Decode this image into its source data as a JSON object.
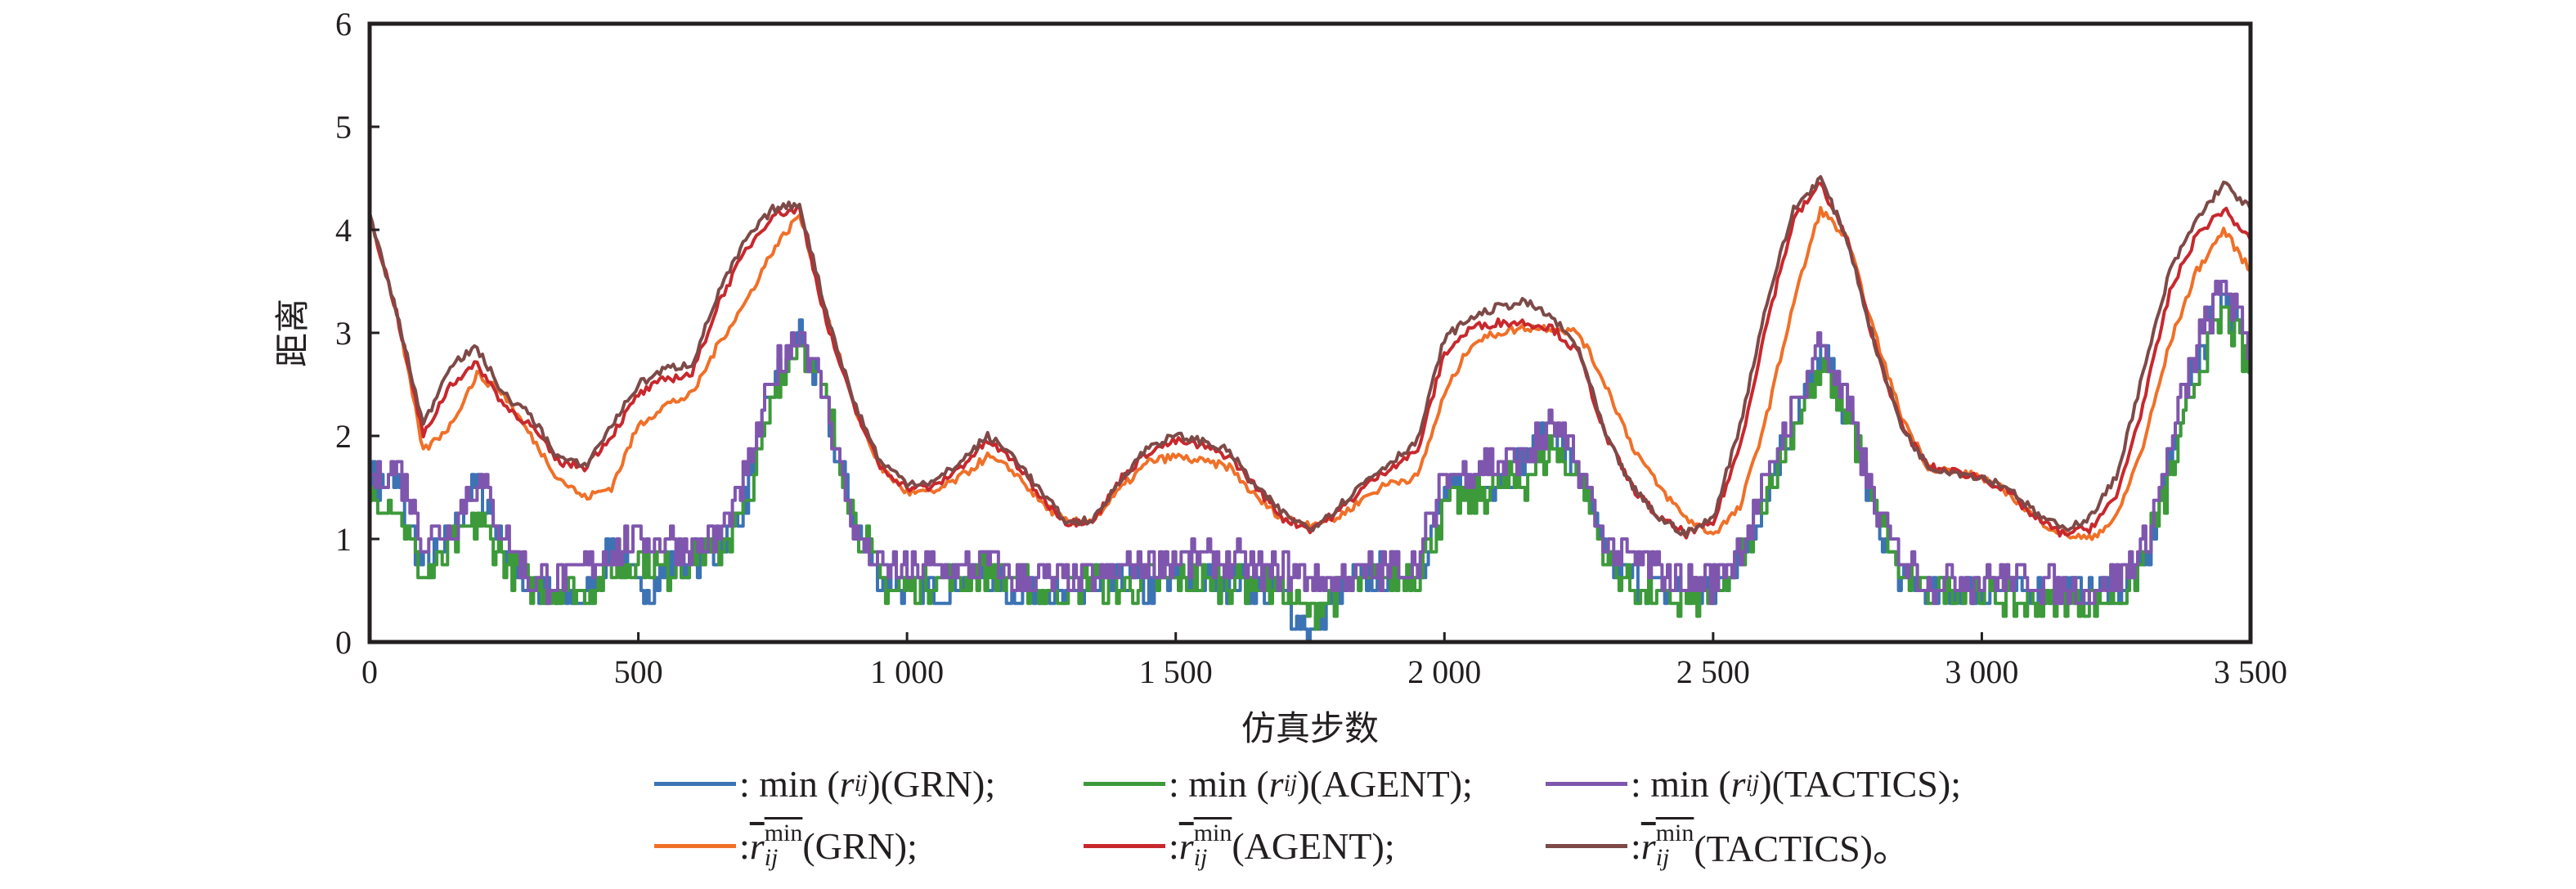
{
  "chart_data": {
    "type": "line",
    "title": "",
    "xlabel": "仿真步数",
    "ylabel": "距离",
    "xlim": [
      0,
      3500
    ],
    "ylim": [
      0,
      6
    ],
    "grid": false,
    "legend_position": "bottom",
    "xticks": [
      0,
      500,
      1000,
      1500,
      2000,
      2500,
      3000,
      3500
    ],
    "xtick_labels": [
      "0",
      "500",
      "1 000",
      "1 500",
      "2 000",
      "2 500",
      "3 000",
      "3 500"
    ],
    "yticks": [
      0,
      1,
      2,
      3,
      4,
      5,
      6
    ],
    "ytick_labels": [
      "0",
      "1",
      "2",
      "3",
      "4",
      "5",
      "6"
    ],
    "x": [
      0,
      50,
      100,
      150,
      200,
      250,
      300,
      350,
      400,
      450,
      500,
      550,
      600,
      650,
      700,
      750,
      800,
      850,
      900,
      950,
      1000,
      1050,
      1100,
      1150,
      1200,
      1250,
      1300,
      1350,
      1400,
      1450,
      1500,
      1550,
      1600,
      1650,
      1700,
      1750,
      1800,
      1850,
      1900,
      1950,
      2000,
      2050,
      2100,
      2150,
      2200,
      2250,
      2300,
      2350,
      2400,
      2450,
      2500,
      2550,
      2600,
      2650,
      2700,
      2750,
      2800,
      2850,
      2900,
      2950,
      3000,
      3050,
      3100,
      3150,
      3200,
      3250,
      3300,
      3350,
      3400,
      3450,
      3500
    ],
    "series": [
      {
        "name": "min(r_ij)(GRN)",
        "color": "#3c73b4",
        "style": "min",
        "values": [
          1.55,
          1.5,
          0.7,
          1.0,
          1.6,
          0.9,
          0.5,
          0.4,
          0.4,
          0.9,
          0.5,
          0.7,
          0.8,
          0.9,
          1.4,
          2.5,
          3.0,
          2.2,
          1.2,
          0.6,
          0.5,
          0.5,
          0.6,
          0.6,
          0.5,
          0.5,
          0.4,
          0.5,
          0.6,
          0.5,
          0.6,
          0.6,
          0.6,
          0.5,
          0.4,
          0.1,
          0.5,
          0.6,
          0.7,
          0.7,
          1.4,
          1.5,
          1.6,
          1.8,
          2.0,
          1.6,
          0.8,
          0.6,
          0.5,
          0.5,
          0.5,
          0.8,
          1.5,
          2.2,
          2.8,
          2.2,
          1.2,
          0.6,
          0.5,
          0.5,
          0.5,
          0.5,
          0.5,
          0.5,
          0.5,
          0.5,
          0.7,
          1.8,
          2.8,
          3.4,
          2.8
        ]
      },
      {
        "name": "min(r_ij)(AGENT)",
        "color": "#3d9a3a",
        "style": "min",
        "values": [
          1.45,
          1.3,
          0.6,
          0.9,
          1.2,
          0.8,
          0.5,
          0.5,
          0.5,
          0.7,
          0.8,
          0.7,
          0.8,
          0.9,
          1.3,
          2.4,
          2.95,
          2.3,
          1.2,
          0.6,
          0.5,
          0.6,
          0.6,
          0.7,
          0.6,
          0.5,
          0.5,
          0.6,
          0.5,
          0.6,
          0.6,
          0.6,
          0.6,
          0.6,
          0.5,
          0.3,
          0.5,
          0.6,
          0.6,
          0.7,
          1.3,
          1.4,
          1.5,
          1.6,
          1.9,
          1.6,
          0.8,
          0.5,
          0.4,
          0.4,
          0.4,
          0.8,
          1.5,
          2.1,
          2.6,
          2.2,
          1.3,
          0.6,
          0.5,
          0.5,
          0.5,
          0.4,
          0.4,
          0.4,
          0.4,
          0.4,
          0.8,
          1.6,
          2.6,
          3.2,
          2.6
        ]
      },
      {
        "name": "min(r_ij)(TACTICS)",
        "color": "#7f56ad",
        "style": "min",
        "values": [
          1.6,
          1.7,
          1.0,
          1.1,
          1.6,
          1.0,
          0.6,
          0.6,
          0.7,
          0.9,
          1.0,
          1.0,
          0.9,
          1.0,
          1.6,
          2.6,
          3.05,
          2.3,
          1.1,
          0.7,
          0.7,
          0.7,
          0.7,
          0.8,
          0.6,
          0.6,
          0.6,
          0.6,
          0.7,
          0.8,
          0.8,
          0.8,
          0.8,
          0.7,
          0.7,
          0.6,
          0.6,
          0.7,
          0.7,
          0.8,
          1.6,
          1.7,
          1.75,
          1.8,
          2.1,
          1.7,
          0.9,
          0.8,
          0.7,
          0.6,
          0.6,
          0.9,
          1.6,
          2.3,
          2.9,
          2.3,
          1.3,
          0.8,
          0.6,
          0.6,
          0.6,
          0.6,
          0.6,
          0.5,
          0.5,
          0.6,
          0.9,
          1.9,
          2.9,
          3.5,
          2.8
        ]
      },
      {
        "name": "r_ij^min bar (GRN)",
        "color": "#f07028",
        "style": "mean",
        "values": [
          4.15,
          3.2,
          1.85,
          2.1,
          2.6,
          2.4,
          2.0,
          1.6,
          1.4,
          1.5,
          2.1,
          2.3,
          2.4,
          2.9,
          3.3,
          3.8,
          4.15,
          3.2,
          2.3,
          1.7,
          1.45,
          1.45,
          1.6,
          1.8,
          1.65,
          1.35,
          1.15,
          1.2,
          1.5,
          1.75,
          1.8,
          1.75,
          1.7,
          1.4,
          1.2,
          1.15,
          1.2,
          1.4,
          1.55,
          1.6,
          2.4,
          2.9,
          3.0,
          3.05,
          3.05,
          3.0,
          2.5,
          1.9,
          1.5,
          1.2,
          1.05,
          1.3,
          2.2,
          3.3,
          4.2,
          3.9,
          3.0,
          2.2,
          1.7,
          1.65,
          1.6,
          1.45,
          1.2,
          1.05,
          1.0,
          1.2,
          1.9,
          2.9,
          3.6,
          4.0,
          3.6
        ]
      },
      {
        "name": "r_ij^min bar (AGENT)",
        "color": "#c8282d",
        "style": "mean",
        "values": [
          4.15,
          3.2,
          2.0,
          2.5,
          2.7,
          2.3,
          2.1,
          1.75,
          1.7,
          2.0,
          2.4,
          2.55,
          2.6,
          3.3,
          3.8,
          4.15,
          4.2,
          3.1,
          2.3,
          1.7,
          1.5,
          1.5,
          1.7,
          1.95,
          1.75,
          1.4,
          1.15,
          1.2,
          1.6,
          1.85,
          1.95,
          1.9,
          1.8,
          1.5,
          1.2,
          1.1,
          1.25,
          1.5,
          1.7,
          1.85,
          2.8,
          3.05,
          3.1,
          3.1,
          3.05,
          2.8,
          2.0,
          1.5,
          1.2,
          1.05,
          1.15,
          1.9,
          3.1,
          4.1,
          4.45,
          3.9,
          2.9,
          2.1,
          1.7,
          1.65,
          1.6,
          1.45,
          1.2,
          1.05,
          1.1,
          1.4,
          2.3,
          3.4,
          3.95,
          4.2,
          3.9
        ]
      },
      {
        "name": "r_ij^min bar (TACTICS)",
        "color": "#7d4a48",
        "style": "mean",
        "values": [
          4.15,
          3.2,
          2.1,
          2.7,
          2.85,
          2.4,
          2.2,
          1.8,
          1.7,
          2.1,
          2.5,
          2.65,
          2.7,
          3.4,
          3.9,
          4.2,
          4.25,
          3.2,
          2.35,
          1.75,
          1.55,
          1.55,
          1.75,
          2.0,
          1.8,
          1.45,
          1.15,
          1.2,
          1.6,
          1.9,
          2.0,
          1.95,
          1.85,
          1.5,
          1.25,
          1.1,
          1.3,
          1.55,
          1.75,
          1.95,
          2.95,
          3.15,
          3.25,
          3.3,
          3.15,
          2.85,
          2.0,
          1.5,
          1.2,
          1.05,
          1.2,
          2.1,
          3.3,
          4.2,
          4.5,
          3.9,
          2.9,
          2.1,
          1.7,
          1.65,
          1.6,
          1.5,
          1.25,
          1.1,
          1.2,
          1.6,
          2.6,
          3.6,
          4.1,
          4.45,
          4.2
        ]
      }
    ]
  },
  "legend": {
    "rows": [
      [
        {
          "color": "#3c73b4",
          "prefix": ": min (",
          "var": "r",
          "sub": "ij",
          "suffix": ")(GRN);"
        },
        {
          "color": "#3d9a3a",
          "prefix": ": min (",
          "var": "r",
          "sub": "ij",
          "suffix": ")(AGENT);"
        },
        {
          "color": "#7f56ad",
          "prefix": ": min (",
          "var": "r",
          "sub": "ij",
          "suffix": ")(TACTICS);"
        }
      ],
      [
        {
          "color": "#f07028",
          "prefix": ": ",
          "var": "r",
          "sup": "min",
          "sub": "ij",
          "suffix": "(GRN);"
        },
        {
          "color": "#c8282d",
          "prefix": ": ",
          "var": "r",
          "sup": "min",
          "sub": "ij",
          "suffix": "(AGENT);"
        },
        {
          "color": "#7d4a48",
          "prefix": ": ",
          "var": "r",
          "sup": "min",
          "sub": "ij",
          "suffix": "(TACTICS)。"
        }
      ]
    ]
  }
}
